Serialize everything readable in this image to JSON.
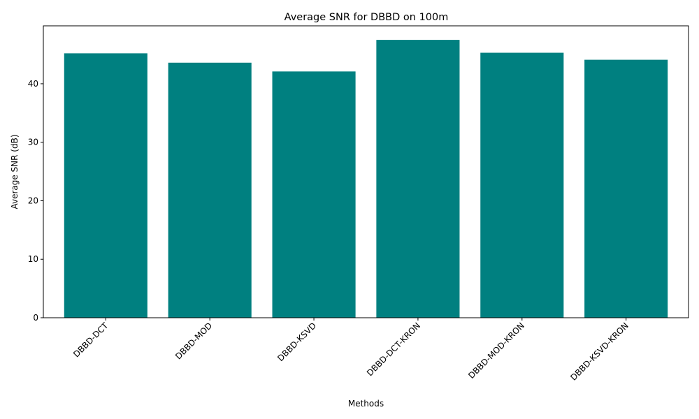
{
  "chart_data": {
    "type": "bar",
    "title": "Average SNR for DBBD on 100m",
    "xlabel": "Methods",
    "ylabel": "Average SNR (dB)",
    "categories": [
      "DBBD-DCT",
      "DBBD-MOD",
      "DBBD-KSVD",
      "DBBD-DCT-KRON",
      "DBBD-MOD-KRON",
      "DBBD-KSVD-KRON"
    ],
    "values": [
      45.2,
      43.6,
      42.1,
      47.5,
      45.3,
      44.1
    ],
    "ylim": [
      0,
      49.9
    ],
    "yticks": [
      0,
      10,
      20,
      30,
      40
    ],
    "bar_color": "#008080",
    "grid": false,
    "legend": "none"
  }
}
